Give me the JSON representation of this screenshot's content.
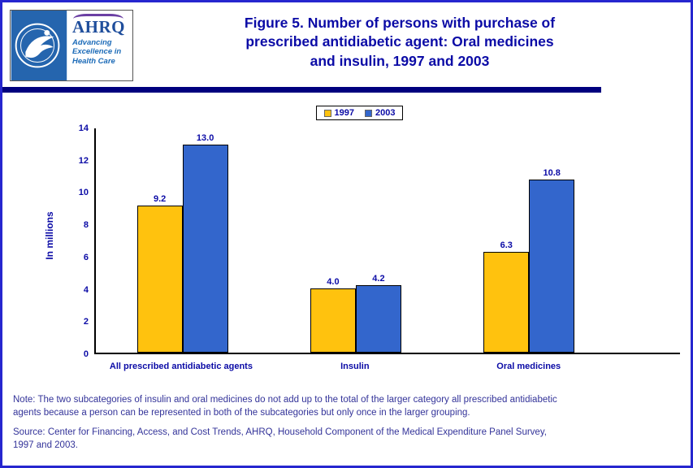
{
  "header": {
    "title_lines": [
      "Figure 5. Number of persons with purchase of",
      "prescribed antidiabetic agent: Oral medicines",
      "and insulin, 1997 and 2003"
    ],
    "ahrq_logo": {
      "name": "AHRQ",
      "tagline_lines": [
        "Advancing",
        "Excellence in",
        "Health Care"
      ]
    }
  },
  "chart_data": {
    "type": "bar",
    "title": "Figure 5. Number of persons with purchase of prescribed antidiabetic agent: Oral medicines and insulin, 1997 and 2003",
    "categories": [
      "All prescribed antidiabetic agents",
      "Insulin",
      "Oral medicines"
    ],
    "series": [
      {
        "name": "1997",
        "color": "#FFC20E",
        "values": [
          9.2,
          4.0,
          6.3
        ]
      },
      {
        "name": "2003",
        "color": "#3366CC",
        "values": [
          13.0,
          4.2,
          10.8
        ]
      }
    ],
    "xlabel": "",
    "ylabel": "In millions",
    "ylim": [
      0,
      14
    ],
    "ytick_step": 2,
    "grid": false,
    "legend_position": "top"
  },
  "footer": {
    "note_lines": [
      "Note: The two subcategories of insulin and oral medicines do not add up to the total of the larger category all prescribed antidiabetic",
      "agents because a person can be represented in both of the subcategories but only once in the larger grouping."
    ],
    "source_lines": [
      "Source: Center for Financing, Access, and Cost Trends, AHRQ, Household Component of the Medical Expenditure Panel Survey,",
      "1997 and 2003."
    ]
  },
  "colors": {
    "title_navy": "#0B0BA6",
    "header_rule": "#00007E",
    "page_border": "#2626CF",
    "bar_1997": "#FFC20E",
    "bar_2003": "#3366CC",
    "note_text": "#333399"
  }
}
